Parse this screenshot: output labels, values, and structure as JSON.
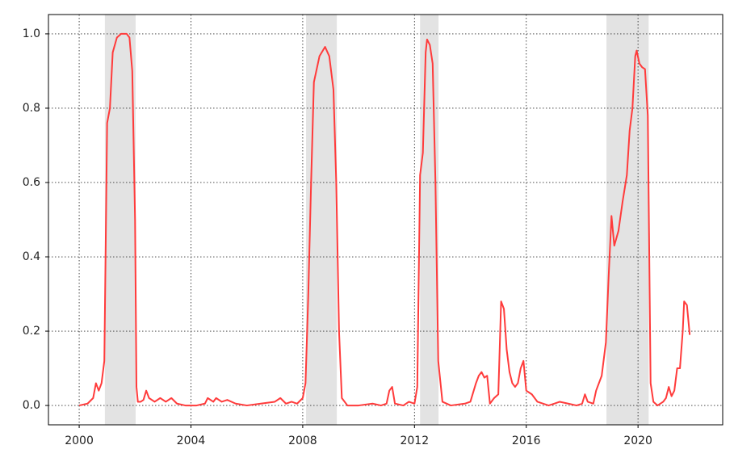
{
  "chart_data": {
    "type": "line",
    "x": [
      2000.0,
      2000.3,
      2000.5,
      2000.6,
      2000.7,
      2000.8,
      2000.9,
      2001.0,
      2001.1,
      2001.2,
      2001.35,
      2001.5,
      2001.7,
      2001.8,
      2001.9,
      2002.0,
      2002.05,
      2002.1,
      2002.2,
      2002.3,
      2002.4,
      2002.5,
      2002.7,
      2002.9,
      2003.1,
      2003.3,
      2003.5,
      2003.8,
      2004.2,
      2004.5,
      2004.6,
      2004.8,
      2004.9,
      2005.1,
      2005.3,
      2005.6,
      2006.0,
      2006.5,
      2007.0,
      2007.2,
      2007.4,
      2007.6,
      2007.8,
      2008.0,
      2008.1,
      2008.2,
      2008.3,
      2008.4,
      2008.6,
      2008.8,
      2008.95,
      2009.1,
      2009.2,
      2009.3,
      2009.4,
      2009.6,
      2010.0,
      2010.5,
      2010.8,
      2011.0,
      2011.1,
      2011.2,
      2011.3,
      2011.6,
      2011.8,
      2012.0,
      2012.1,
      2012.2,
      2012.3,
      2012.4,
      2012.45,
      2012.55,
      2012.65,
      2012.75,
      2012.85,
      2013.0,
      2013.3,
      2013.8,
      2014.0,
      2014.2,
      2014.3,
      2014.4,
      2014.5,
      2014.6,
      2014.7,
      2014.85,
      2015.0,
      2015.1,
      2015.2,
      2015.3,
      2015.4,
      2015.5,
      2015.6,
      2015.7,
      2015.8,
      2015.9,
      2016.0,
      2016.2,
      2016.4,
      2016.8,
      2017.0,
      2017.2,
      2017.5,
      2017.8,
      2018.0,
      2018.1,
      2018.2,
      2018.4,
      2018.5,
      2018.7,
      2018.85,
      2018.95,
      2019.05,
      2019.15,
      2019.3,
      2019.45,
      2019.6,
      2019.7,
      2019.8,
      2019.9,
      2019.95,
      2020.05,
      2020.15,
      2020.25,
      2020.35,
      2020.45,
      2020.55,
      2020.7,
      2020.9,
      2021.0,
      2021.1,
      2021.2,
      2021.3,
      2021.4,
      2021.5,
      2021.6,
      2021.65,
      2021.75,
      2021.85
    ],
    "series": [
      {
        "color": "#ff3b3b",
        "values": [
          0.0,
          0.005,
          0.02,
          0.06,
          0.04,
          0.06,
          0.12,
          0.76,
          0.8,
          0.95,
          0.99,
          1.0,
          1.0,
          0.99,
          0.9,
          0.5,
          0.05,
          0.01,
          0.01,
          0.015,
          0.04,
          0.02,
          0.01,
          0.02,
          0.01,
          0.02,
          0.005,
          0.0,
          0.0,
          0.005,
          0.02,
          0.01,
          0.02,
          0.01,
          0.015,
          0.005,
          0.0,
          0.005,
          0.01,
          0.02,
          0.005,
          0.01,
          0.005,
          0.02,
          0.06,
          0.3,
          0.6,
          0.87,
          0.94,
          0.965,
          0.94,
          0.85,
          0.6,
          0.2,
          0.02,
          0.0,
          0.0,
          0.005,
          0.0,
          0.005,
          0.04,
          0.05,
          0.005,
          0.0,
          0.01,
          0.005,
          0.05,
          0.62,
          0.68,
          0.95,
          0.985,
          0.97,
          0.92,
          0.6,
          0.12,
          0.01,
          0.0,
          0.005,
          0.01,
          0.06,
          0.08,
          0.09,
          0.075,
          0.08,
          0.005,
          0.02,
          0.03,
          0.28,
          0.26,
          0.15,
          0.09,
          0.06,
          0.05,
          0.06,
          0.1,
          0.12,
          0.04,
          0.03,
          0.01,
          0.0,
          0.005,
          0.01,
          0.005,
          0.0,
          0.005,
          0.03,
          0.01,
          0.005,
          0.04,
          0.08,
          0.17,
          0.35,
          0.51,
          0.43,
          0.47,
          0.55,
          0.62,
          0.74,
          0.8,
          0.94,
          0.955,
          0.92,
          0.91,
          0.905,
          0.78,
          0.06,
          0.01,
          0.0,
          0.01,
          0.02,
          0.05,
          0.025,
          0.04,
          0.1,
          0.1,
          0.2,
          0.28,
          0.27,
          0.19
        ]
      }
    ],
    "shaded_regions": [
      [
        2000.92,
        2002.02
      ],
      [
        2008.12,
        2009.22
      ],
      [
        2012.2,
        2012.86
      ],
      [
        2018.87,
        2020.38
      ]
    ],
    "shade_color": "#e3e3e3",
    "xlim": [
      1998.9,
      2023.03
    ],
    "xticks": [
      2000,
      2004,
      2008,
      2012,
      2016,
      2020
    ],
    "ylim": [
      -0.052,
      1.052
    ],
    "yticks": [
      {
        "value": 0,
        "label": "0.0"
      },
      0.2,
      0.4,
      0.6,
      0.8,
      {
        "value": 1,
        "label": "1.0"
      }
    ],
    "grid": true
  }
}
